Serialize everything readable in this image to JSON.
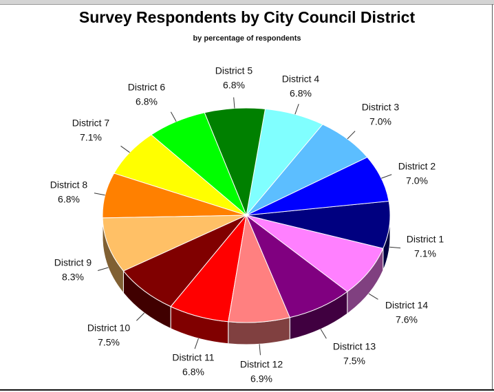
{
  "chart_data": {
    "type": "pie",
    "style": "3d",
    "title": "Survey Respondents by City Council District",
    "subtitle": "by percentage of respondents",
    "legend": "none",
    "slices": [
      {
        "label": "District 1",
        "value": 7.1,
        "display": "7.1%",
        "color": "#000080"
      },
      {
        "label": "District 2",
        "value": 7.0,
        "display": "7.0%",
        "color": "#0000FF"
      },
      {
        "label": "District 3",
        "value": 7.0,
        "display": "7.0%",
        "color": "#5CBEFF"
      },
      {
        "label": "District 4",
        "value": 6.8,
        "display": "6.8%",
        "color": "#80FFFF"
      },
      {
        "label": "District 5",
        "value": 6.8,
        "display": "6.8%",
        "color": "#008000"
      },
      {
        "label": "District 6",
        "value": 6.8,
        "display": "6.8%",
        "color": "#00FF00"
      },
      {
        "label": "District 7",
        "value": 7.1,
        "display": "7.1%",
        "color": "#FFFF00"
      },
      {
        "label": "District 8",
        "value": 6.8,
        "display": "6.8%",
        "color": "#FF8000"
      },
      {
        "label": "District 9",
        "value": 8.3,
        "display": "8.3%",
        "color": "#FFC066"
      },
      {
        "label": "District 10",
        "value": 7.5,
        "display": "7.5%",
        "color": "#800000"
      },
      {
        "label": "District 11",
        "value": 6.8,
        "display": "6.8%",
        "color": "#FF0000"
      },
      {
        "label": "District 12",
        "value": 6.9,
        "display": "6.9%",
        "color": "#FF8080"
      },
      {
        "label": "District 13",
        "value": 7.5,
        "display": "7.5%",
        "color": "#800080"
      },
      {
        "label": "District 14",
        "value": 7.6,
        "display": "7.6%",
        "color": "#FF80FF"
      }
    ]
  }
}
